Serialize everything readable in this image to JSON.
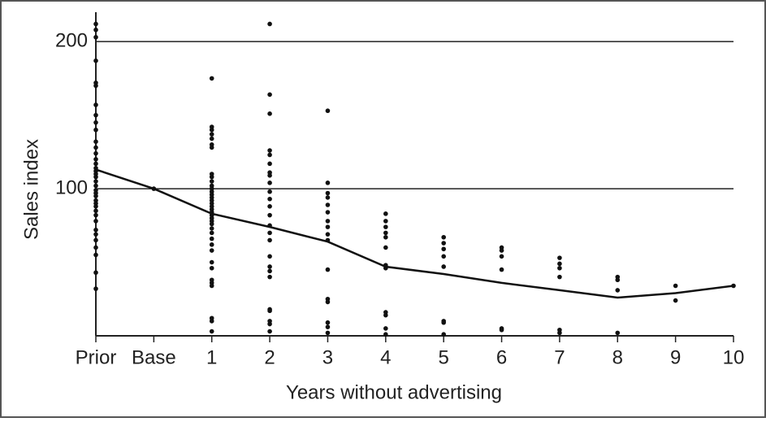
{
  "chart_data": {
    "type": "scatter",
    "xlabel": "Years without advertising",
    "ylabel": "Sales index",
    "categories": [
      "Prior",
      "Base",
      "1",
      "2",
      "3",
      "4",
      "5",
      "6",
      "7",
      "8",
      "9",
      "10"
    ],
    "points": [
      [
        212,
        208,
        203,
        187,
        172,
        170,
        157,
        150,
        145,
        140,
        132,
        128,
        124,
        120,
        117,
        114,
        112,
        110,
        108,
        105,
        102,
        99,
        97,
        95,
        92,
        90,
        88,
        85,
        82,
        78,
        72,
        69,
        65,
        60,
        55,
        43,
        32
      ],
      [
        100
      ],
      [
        175,
        142,
        140,
        137,
        134,
        130,
        128,
        110,
        108,
        105,
        102,
        100,
        98,
        96,
        94,
        92,
        90,
        88,
        86,
        84,
        82,
        80,
        78,
        76,
        73,
        70,
        66,
        62,
        58,
        50,
        46,
        38,
        36,
        34,
        12,
        10,
        3
      ],
      [
        212,
        164,
        151,
        126,
        123,
        117,
        111,
        109,
        104,
        98,
        93,
        88,
        82,
        75,
        70,
        65,
        54,
        47,
        44,
        40,
        18,
        17,
        10,
        8,
        3
      ],
      [
        153,
        104,
        97,
        94,
        89,
        84,
        78,
        74,
        69,
        65,
        45,
        25,
        23,
        9,
        6,
        2
      ],
      [
        83,
        78,
        74,
        70,
        67,
        60,
        48,
        46,
        16,
        14,
        5,
        1
      ],
      [
        67,
        63,
        59,
        54,
        47,
        10,
        9,
        1
      ],
      [
        60,
        58,
        54,
        45,
        5,
        4
      ],
      [
        53,
        49,
        46,
        40,
        4,
        2
      ],
      [
        40,
        38,
        31,
        2
      ],
      [
        34,
        24
      ],
      [
        34
      ]
    ],
    "line": [
      113,
      100,
      83,
      74,
      64,
      47,
      42,
      36,
      31,
      26,
      29,
      34
    ],
    "color": "#111111",
    "ylim": [
      0,
      220
    ],
    "yticks": [
      100,
      200
    ],
    "grid": true
  }
}
